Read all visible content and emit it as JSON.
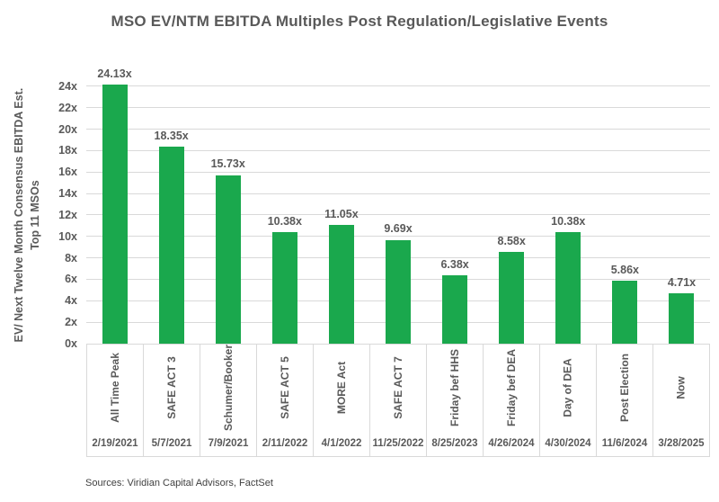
{
  "source_note": "Sources: Viridian Capital Advisors, FactSet",
  "colors": {
    "bar": "#1aa84d",
    "label_text": "#595959",
    "gridline": "#d9d9d9",
    "axis_border": "#d9d9d9"
  },
  "chart_data": {
    "type": "bar",
    "title": "MSO EV/NTM EBITDA Multiples Post Regulation/Legislative Events",
    "ylabel_line1": "EV/ Next Twelve Month Consensus EBITDA Est.",
    "ylabel_line2": "Top 11 MSOs",
    "xlabel": "",
    "ylim": [
      0,
      25
    ],
    "y_major_unit": 2,
    "grid": true,
    "legend": "none",
    "y_ticks": [
      "0x",
      "2x",
      "4x",
      "6x",
      "8x",
      "10x",
      "12x",
      "14x",
      "16x",
      "18x",
      "20x",
      "22x",
      "24x"
    ],
    "categories": [
      "All Time Peak",
      "SAFE ACT 3",
      "Schumer/Booker",
      "SAFE ACT 5",
      "MORE Act",
      "SAFE ACT 7",
      "Friday bef HHS",
      "Friday bef DEA",
      "Day of DEA",
      "Post Election",
      "Now"
    ],
    "dates": [
      "2/19/2021",
      "5/7/2021",
      "7/9/2021",
      "2/11/2022",
      "4/1/2022",
      "11/25/2022",
      "8/25/2023",
      "4/26/2024",
      "4/30/2024",
      "11/6/2024",
      "3/28/2025"
    ],
    "values": [
      24.13,
      18.35,
      15.73,
      10.38,
      11.05,
      9.69,
      6.38,
      8.58,
      10.38,
      5.86,
      4.71
    ],
    "value_labels": [
      "24.13x",
      "18.35x",
      "15.73x",
      "10.38x",
      "11.05x",
      "9.69x",
      "6.38x",
      "8.58x",
      "10.38x",
      "5.86x",
      "4.71x"
    ]
  }
}
